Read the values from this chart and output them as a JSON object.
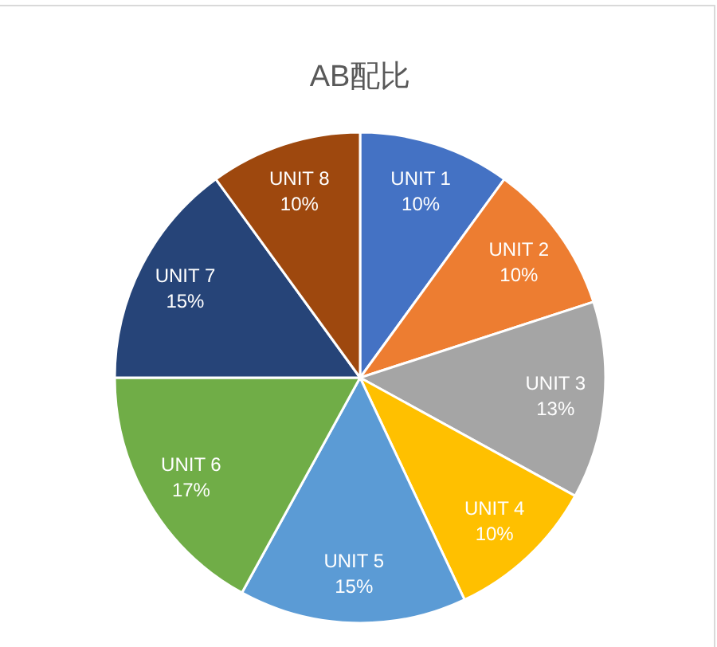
{
  "chart_data": {
    "type": "pie",
    "title": "AB配比",
    "categories": [
      "UNIT 1",
      "UNIT 2",
      "UNIT 3",
      "UNIT 4",
      "UNIT 5",
      "UNIT 6",
      "UNIT 7",
      "UNIT 8"
    ],
    "values": [
      10,
      10,
      13,
      10,
      15,
      17,
      15,
      10
    ],
    "value_labels": [
      "10%",
      "10%",
      "13%",
      "10%",
      "15%",
      "17%",
      "15%",
      "10%"
    ],
    "colors": [
      "#4472c4",
      "#ed7d31",
      "#a5a5a5",
      "#ffc000",
      "#5b9bd5",
      "#70ad47",
      "#264478",
      "#9e480e"
    ]
  }
}
